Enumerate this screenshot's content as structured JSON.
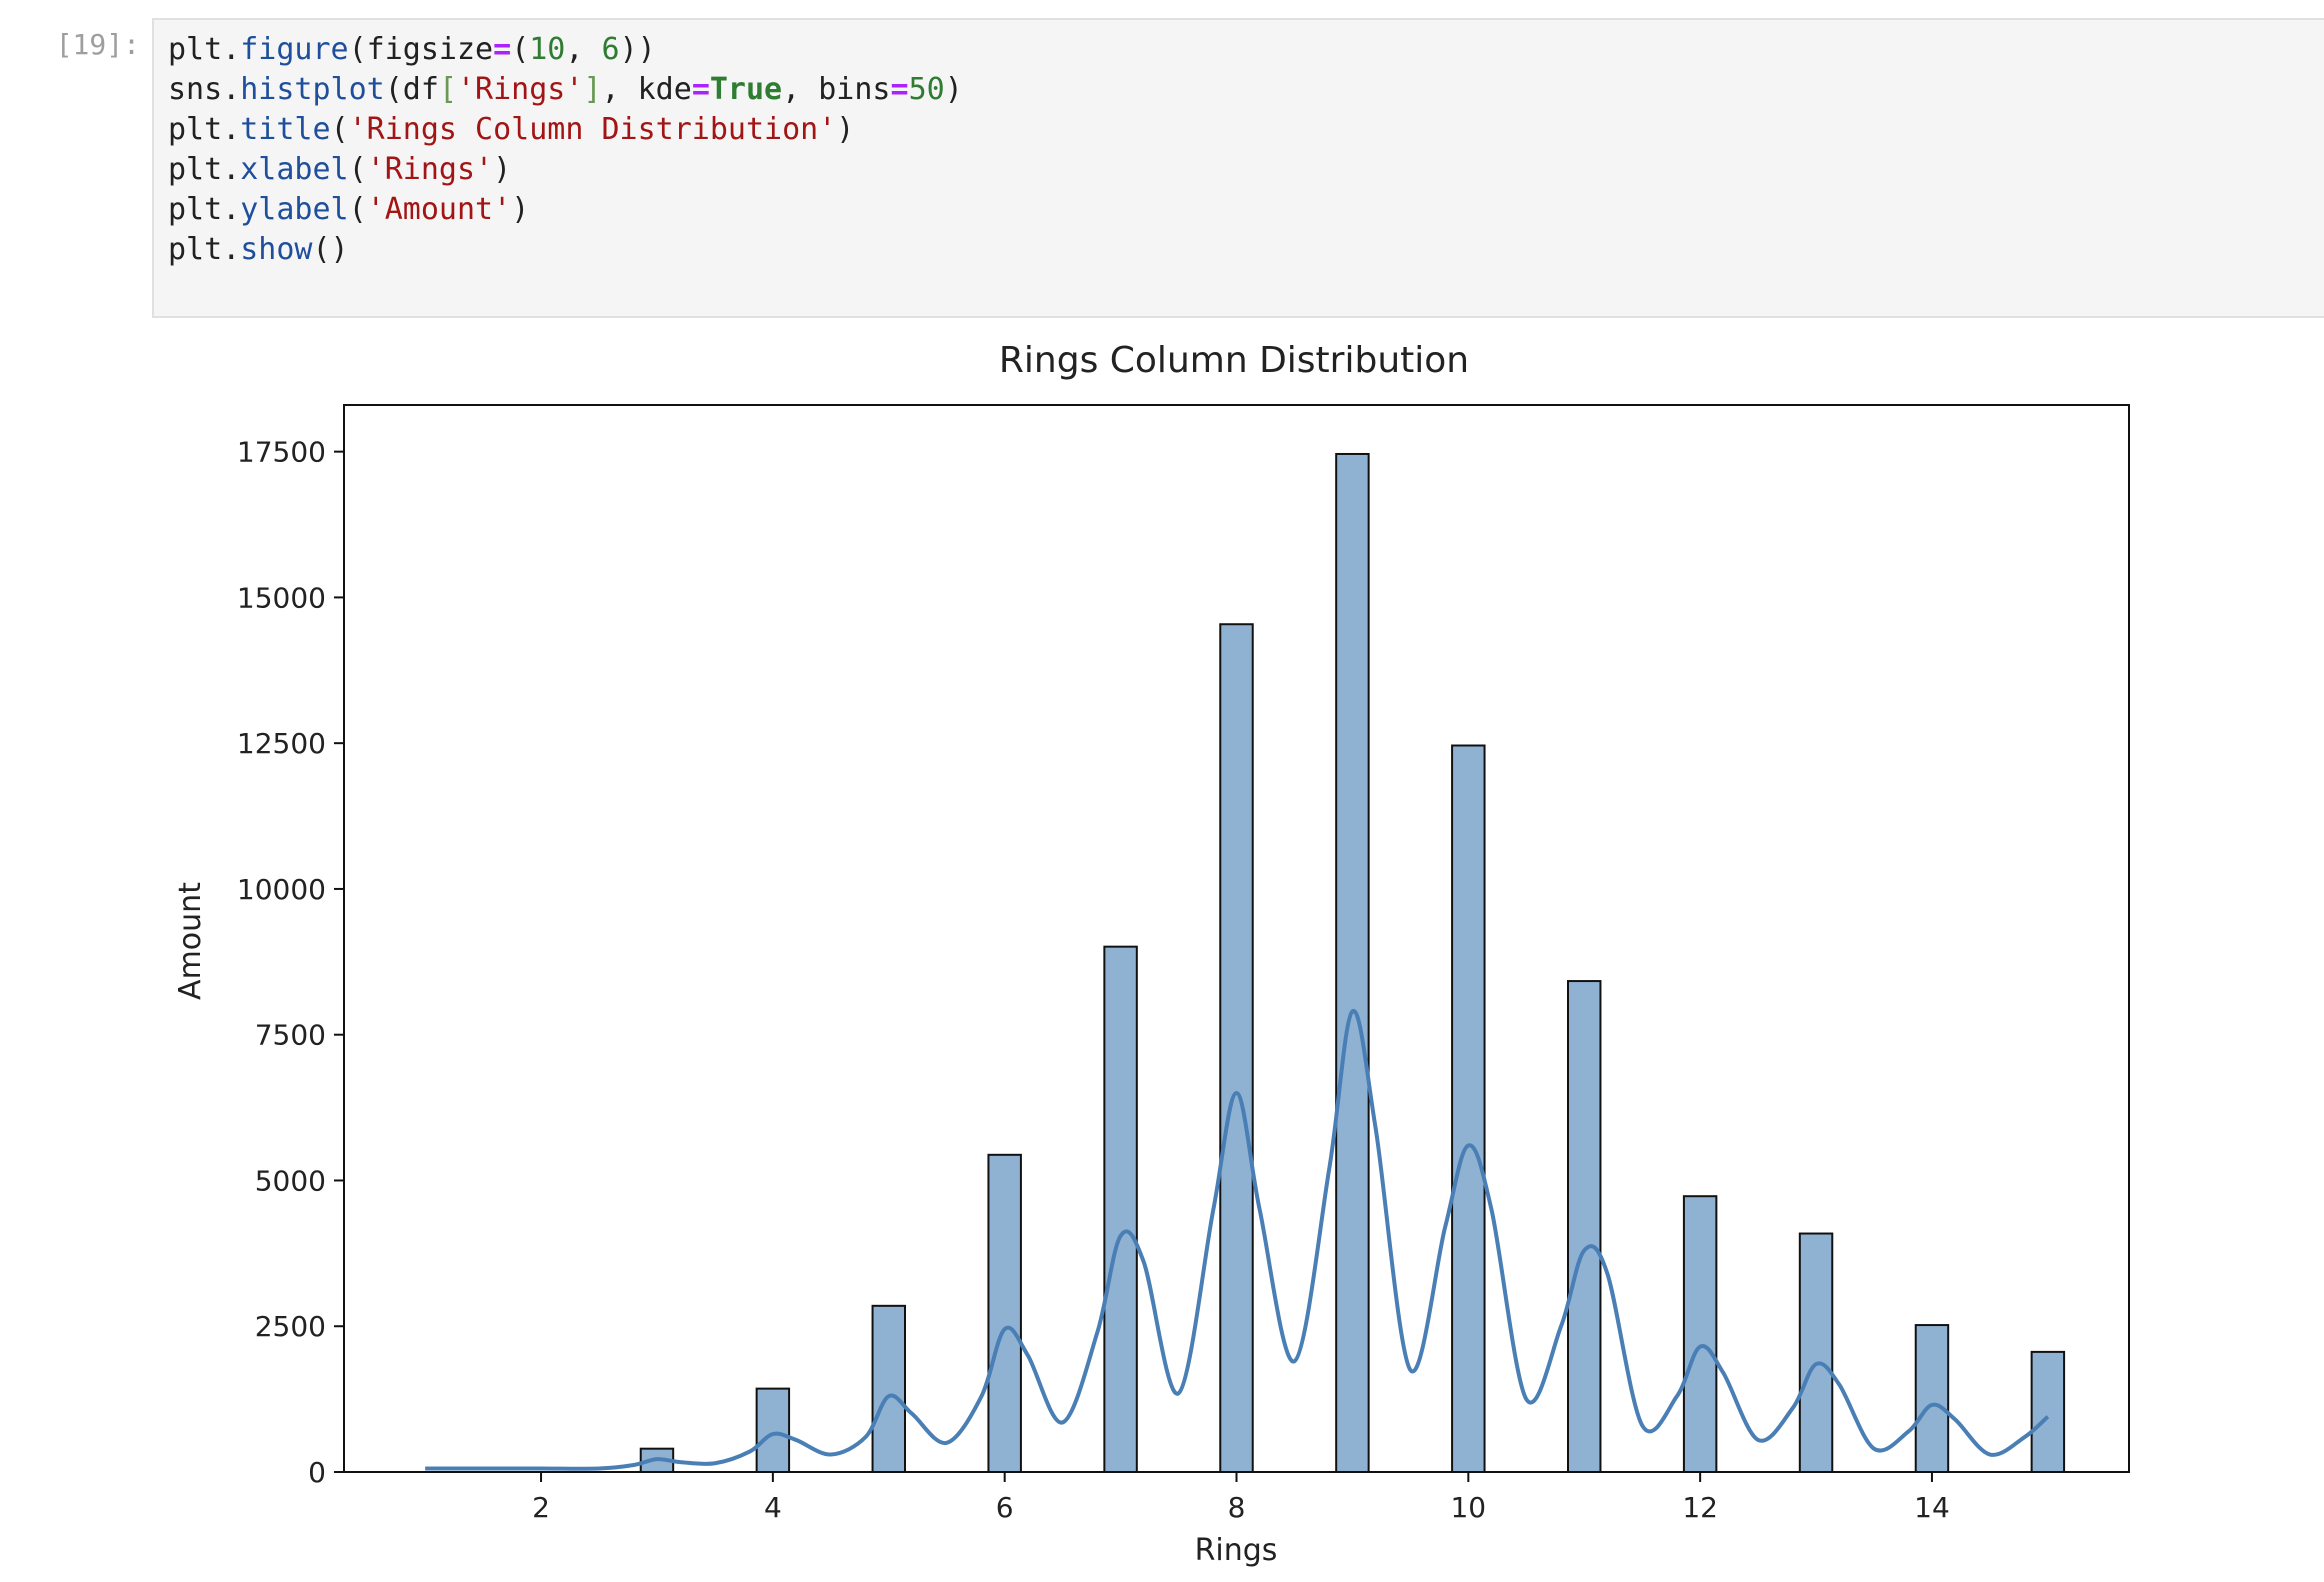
{
  "cell": {
    "prompt": "[19]:",
    "lines": [
      [
        {
          "t": "plt",
          "c": "obj"
        },
        {
          "t": ".",
          "c": "p"
        },
        {
          "t": "figure",
          "c": "fn"
        },
        {
          "t": "(figsize",
          "c": "p"
        },
        {
          "t": "=",
          "c": "eq"
        },
        {
          "t": "(",
          "c": "p"
        },
        {
          "t": "10",
          "c": "num"
        },
        {
          "t": ", ",
          "c": "p"
        },
        {
          "t": "6",
          "c": "num"
        },
        {
          "t": "))",
          "c": "p"
        }
      ],
      [
        {
          "t": "sns",
          "c": "obj"
        },
        {
          "t": ".",
          "c": "p"
        },
        {
          "t": "histplot",
          "c": "fn"
        },
        {
          "t": "(df",
          "c": "p"
        },
        {
          "t": "[",
          "c": "brk"
        },
        {
          "t": "'Rings'",
          "c": "str"
        },
        {
          "t": "]",
          "c": "brk"
        },
        {
          "t": ", kde",
          "c": "p"
        },
        {
          "t": "=",
          "c": "eq"
        },
        {
          "t": "True",
          "c": "kw"
        },
        {
          "t": ", bins",
          "c": "p"
        },
        {
          "t": "=",
          "c": "eq"
        },
        {
          "t": "50",
          "c": "num"
        },
        {
          "t": ")",
          "c": "p"
        }
      ],
      [
        {
          "t": "plt",
          "c": "obj"
        },
        {
          "t": ".",
          "c": "p"
        },
        {
          "t": "title",
          "c": "fn"
        },
        {
          "t": "(",
          "c": "p"
        },
        {
          "t": "'Rings Column Distribution'",
          "c": "str"
        },
        {
          "t": ")",
          "c": "p"
        }
      ],
      [
        {
          "t": "plt",
          "c": "obj"
        },
        {
          "t": ".",
          "c": "p"
        },
        {
          "t": "xlabel",
          "c": "fn"
        },
        {
          "t": "(",
          "c": "p"
        },
        {
          "t": "'Rings'",
          "c": "str"
        },
        {
          "t": ")",
          "c": "p"
        }
      ],
      [
        {
          "t": "plt",
          "c": "obj"
        },
        {
          "t": ".",
          "c": "p"
        },
        {
          "t": "ylabel",
          "c": "fn"
        },
        {
          "t": "(",
          "c": "p"
        },
        {
          "t": "'Amount'",
          "c": "str"
        },
        {
          "t": ")",
          "c": "p"
        }
      ],
      [
        {
          "t": "plt",
          "c": "obj"
        },
        {
          "t": ".",
          "c": "p"
        },
        {
          "t": "show",
          "c": "fn"
        },
        {
          "t": "()",
          "c": "p"
        }
      ]
    ]
  },
  "chart_data": {
    "type": "bar",
    "title": "Rings Column Distribution",
    "xlabel": "Rings",
    "ylabel": "Amount",
    "xlim": [
      0.3,
      15.7
    ],
    "ylim": [
      0,
      18300
    ],
    "xticks": [
      2,
      4,
      6,
      8,
      10,
      12,
      14
    ],
    "yticks": [
      0,
      2500,
      5000,
      7500,
      10000,
      12500,
      15000,
      17500
    ],
    "bin_width": 0.28,
    "bars": [
      {
        "x": 3,
        "value": 400
      },
      {
        "x": 4,
        "value": 1430
      },
      {
        "x": 5,
        "value": 2850
      },
      {
        "x": 6,
        "value": 5440
      },
      {
        "x": 7,
        "value": 9010
      },
      {
        "x": 8,
        "value": 14540
      },
      {
        "x": 9,
        "value": 17460
      },
      {
        "x": 10,
        "value": 12460
      },
      {
        "x": 11,
        "value": 8420
      },
      {
        "x": 12,
        "value": 4730
      },
      {
        "x": 13,
        "value": 4090
      },
      {
        "x": 14,
        "value": 2520
      },
      {
        "x": 15,
        "value": 2060
      }
    ],
    "kde": {
      "x": [
        1,
        1.5,
        2,
        2.5,
        2.8,
        3,
        3.2,
        3.5,
        3.8,
        4,
        4.2,
        4.5,
        4.8,
        5,
        5.2,
        5.5,
        5.8,
        6,
        6.2,
        6.5,
        6.8,
        7,
        7.2,
        7.5,
        7.8,
        8,
        8.2,
        8.5,
        8.8,
        9,
        9.2,
        9.5,
        9.8,
        10,
        10.2,
        10.5,
        10.8,
        11,
        11.2,
        11.5,
        11.8,
        12,
        12.2,
        12.5,
        12.8,
        13,
        13.2,
        13.5,
        13.8,
        14,
        14.2,
        14.5,
        14.8,
        15
      ],
      "y": [
        60,
        60,
        60,
        60,
        120,
        220,
        170,
        150,
        350,
        650,
        550,
        300,
        600,
        1300,
        1000,
        500,
        1300,
        2450,
        2000,
        850,
        2400,
        4050,
        3600,
        1350,
        4500,
        6500,
        4500,
        1900,
        5200,
        7900,
        5900,
        1750,
        4200,
        5600,
        4500,
        1250,
        2500,
        3800,
        3400,
        800,
        1300,
        2150,
        1700,
        550,
        1100,
        1850,
        1500,
        400,
        700,
        1150,
        900,
        300,
        600,
        950
      ]
    },
    "colors": {
      "bar_fill": "#90b2d2",
      "bar_edge": "#111111",
      "kde_line": "#4a7fb6",
      "axes": "#111111"
    },
    "grid": false,
    "legend": "none"
  }
}
